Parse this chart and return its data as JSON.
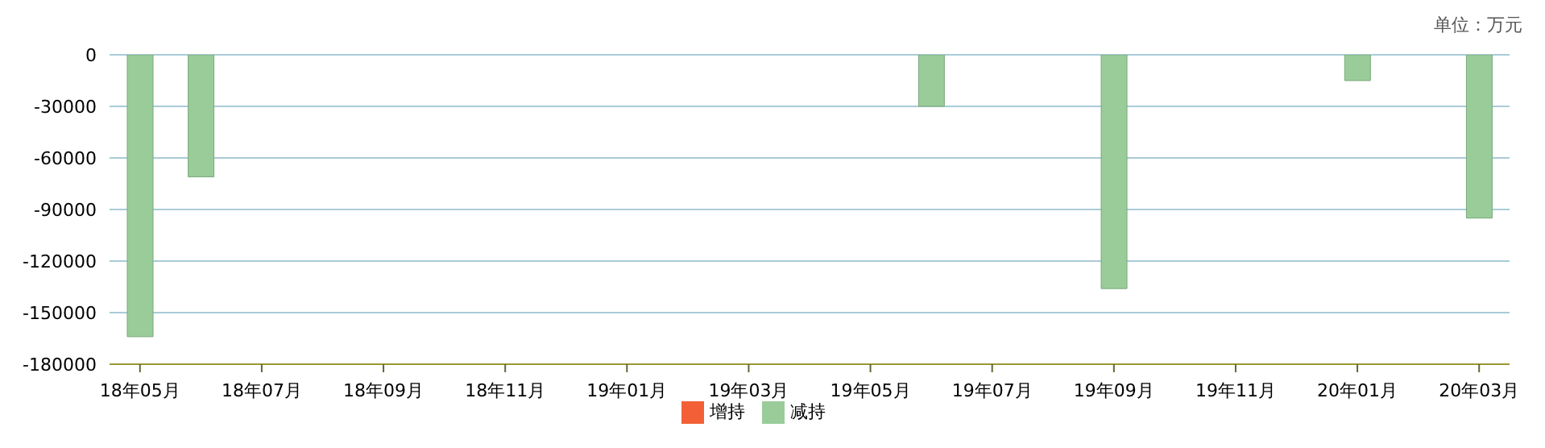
{
  "chart_data": {
    "type": "bar",
    "categories": [
      "18年05月",
      null,
      "18年07月",
      null,
      "18年09月",
      null,
      "18年11月",
      null,
      "19年01月",
      null,
      "19年03月",
      null,
      "19年05月",
      null,
      "19年07月",
      null,
      "19年09月",
      null,
      "19年11月",
      null,
      "20年01月",
      null,
      "20年03月"
    ],
    "series": [
      {
        "name": "增持",
        "color": "#f36037",
        "values": [
          null,
          null,
          null,
          null,
          null,
          null,
          null,
          null,
          null,
          null,
          null,
          null,
          null,
          null,
          null,
          null,
          null,
          null,
          null,
          null,
          null,
          null,
          null
        ]
      },
      {
        "name": "减持",
        "color": "#99cc99",
        "values": [
          -164000,
          -71000,
          null,
          null,
          null,
          null,
          null,
          null,
          null,
          null,
          null,
          null,
          null,
          -30000,
          null,
          null,
          -136000,
          null,
          null,
          null,
          -15000,
          null,
          -95000
        ]
      }
    ],
    "ylim": [
      -180000,
      0
    ],
    "yticks": [
      -180000,
      -150000,
      -120000,
      -90000,
      -60000,
      -30000,
      0
    ],
    "grid": "y",
    "legend": "bottom",
    "annotations": [
      "单位：万元"
    ]
  }
}
